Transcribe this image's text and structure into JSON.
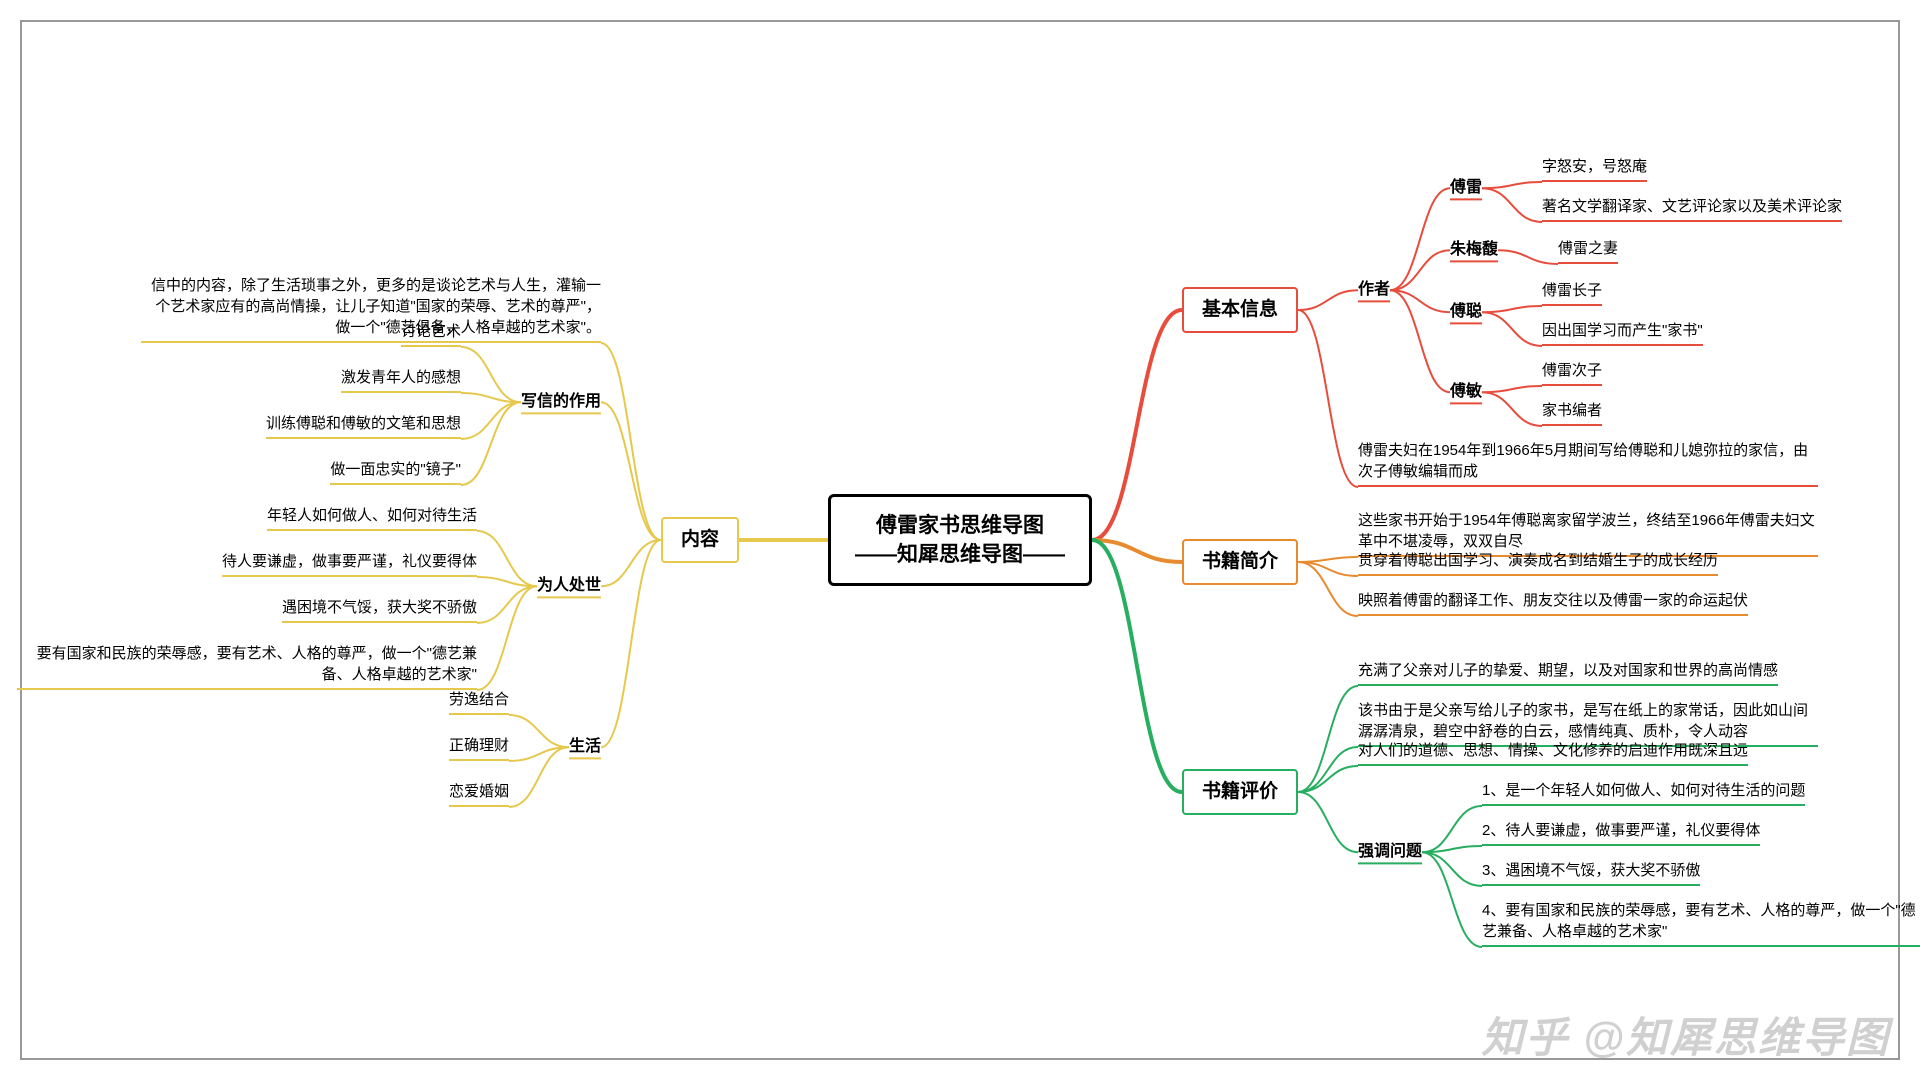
{
  "colors": {
    "root": "#000000",
    "red": "#e74c3c",
    "orange": "#e78b2e",
    "green": "#27ae60",
    "yellow": "#e6c84c",
    "frame": "#888888"
  },
  "root": {
    "line1": "傅雷家书思维导图",
    "line2": "——知犀思维导图——"
  },
  "right": [
    {
      "label": "基本信息",
      "color": "red",
      "children": [
        {
          "label": "作者",
          "children": [
            {
              "label": "傅雷",
              "children": [
                {
                  "label": "字怒安，号怒庵"
                },
                {
                  "label": "著名文学翻译家、文艺评论家以及美术评论家"
                }
              ]
            },
            {
              "label": "朱梅馥",
              "children": [
                {
                  "label": "傅雷之妻"
                }
              ]
            },
            {
              "label": "傅聪",
              "children": [
                {
                  "label": "傅雷长子"
                },
                {
                  "label": "因出国学习而产生\"家书\""
                }
              ]
            },
            {
              "label": "傅敏",
              "children": [
                {
                  "label": "傅雷次子"
                },
                {
                  "label": "家书编者"
                }
              ]
            }
          ]
        },
        {
          "label": "傅雷夫妇在1954年到1966年5月期间写给傅聪和儿媳弥拉的家信，由次子傅敏编辑而成"
        }
      ]
    },
    {
      "label": "书籍简介",
      "color": "orange",
      "children": [
        {
          "label": "这些家书开始于1954年傅聪离家留学波兰，终结至1966年傅雷夫妇文革中不堪凌辱，双双自尽"
        },
        {
          "label": "贯穿着傅聪出国学习、演奏成名到结婚生子的成长经历"
        },
        {
          "label": "映照着傅雷的翻译工作、朋友交往以及傅雷一家的命运起伏"
        }
      ]
    },
    {
      "label": "书籍评价",
      "color": "green",
      "children": [
        {
          "label": "充满了父亲对儿子的挚爱、期望，以及对国家和世界的高尚情感"
        },
        {
          "label": "该书由于是父亲写给儿子的家书，是写在纸上的家常话，因此如山间潺潺清泉，碧空中舒卷的白云，感情纯真、质朴，令人动容"
        },
        {
          "label": "对人们的道德、思想、情操、文化修养的启迪作用既深且远"
        },
        {
          "label": "强调问题",
          "children": [
            {
              "label": "1、是一个年轻人如何做人、如何对待生活的问题"
            },
            {
              "label": "2、待人要谦虚，做事要严谨，礼仪要得体"
            },
            {
              "label": "3、遇困境不气馁，获大奖不骄傲"
            },
            {
              "label": "4、要有国家和民族的荣辱感，要有艺术、人格的尊严，做一个\"德艺兼备、人格卓越的艺术家\""
            }
          ]
        }
      ]
    }
  ],
  "left": [
    {
      "label": "内容",
      "color": "yellow",
      "children": [
        {
          "label": "信中的内容，除了生活琐事之外，更多的是谈论艺术与人生，灌输一个艺术家应有的高尚情操，让儿子知道\"国家的荣辱、艺术的尊严\"，做一个\"德艺俱备，人格卓越的艺术家\"。"
        },
        {
          "label": "写信的作用",
          "children": [
            {
              "label": "讨论艺术"
            },
            {
              "label": "激发青年人的感想"
            },
            {
              "label": "训练傅聪和傅敏的文笔和思想"
            },
            {
              "label": "做一面忠实的\"镜子\""
            }
          ]
        },
        {
          "label": "为人处世",
          "children": [
            {
              "label": "年轻人如何做人、如何对待生活"
            },
            {
              "label": "待人要谦虚，做事要严谨，礼仪要得体"
            },
            {
              "label": "遇困境不气馁，获大奖不骄傲"
            },
            {
              "label": "要有国家和民族的荣辱感，要有艺术、人格的尊严，做一个\"德艺兼备、人格卓越的艺术家\""
            }
          ]
        },
        {
          "label": "生活",
          "children": [
            {
              "label": "劳逸结合"
            },
            {
              "label": "正确理财"
            },
            {
              "label": "恋爱婚姻"
            }
          ]
        }
      ]
    }
  ],
  "watermark": "知乎 @知犀思维导图"
}
